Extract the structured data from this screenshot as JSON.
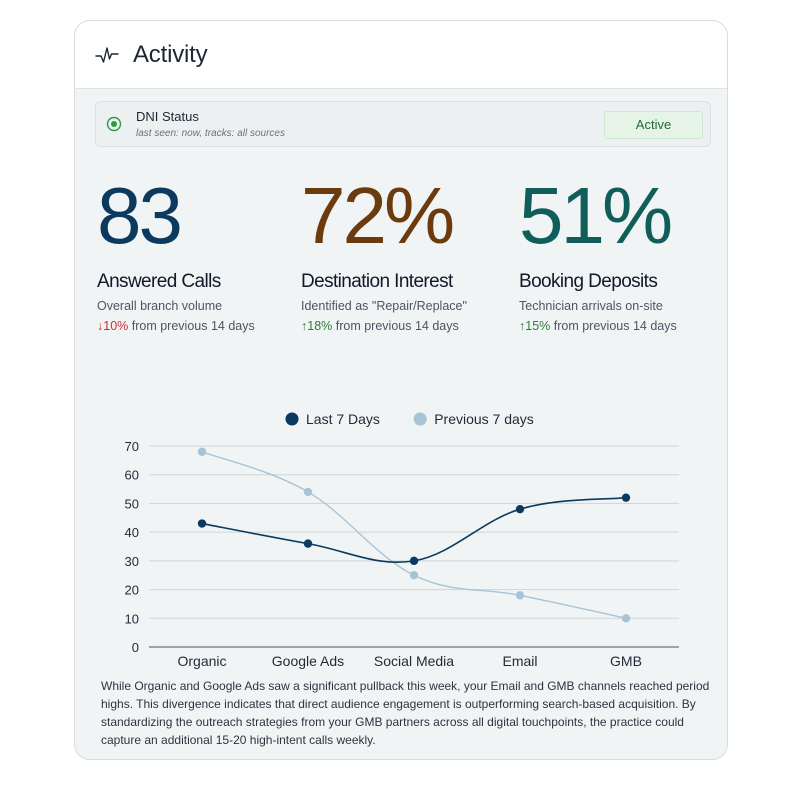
{
  "header": {
    "title": "Activity",
    "icon": "pulse-icon"
  },
  "dni": {
    "name": "DNI Status",
    "subtitle": "last seen: now, tracks: all sources",
    "status": "Active",
    "colors": {
      "indicator": "#2e9a3c",
      "badge_bg": "#e6f4e8",
      "badge_text": "#1f6b2e"
    }
  },
  "metrics": [
    {
      "value": "83",
      "label": "Answered Calls",
      "description": "Overall branch volume",
      "delta": {
        "direction": "down",
        "arrow": "↓",
        "value": "10%",
        "text": " from previous 14 days"
      },
      "color": "#0b3a5e"
    },
    {
      "value": "72%",
      "label": "Destination Interest",
      "description": "Identified as \"Repair/Replace\"",
      "delta": {
        "direction": "up",
        "arrow": "↑",
        "value": "18%",
        "text": " from previous 14 days"
      },
      "color": "#6b3a0d"
    },
    {
      "value": "51%",
      "label": "Booking Deposits",
      "description": "Technician arrivals on-site",
      "delta": {
        "direction": "up",
        "arrow": "↑",
        "value": "15%",
        "text": " from previous 14 days"
      },
      "color": "#0f5e5a"
    }
  ],
  "chart_data": {
    "type": "line",
    "categories": [
      "Organic",
      "Google Ads",
      "Social Media",
      "Email",
      "GMB"
    ],
    "series": [
      {
        "name": "Last 7 Days",
        "values": [
          43,
          36,
          30,
          48,
          52
        ],
        "color": "#0b3a5e"
      },
      {
        "name": "Previous 7 days",
        "values": [
          68,
          54,
          25,
          18,
          10
        ],
        "color": "#a7c4d6"
      }
    ],
    "ylim": [
      0,
      70
    ],
    "yticks": [
      0,
      10,
      20,
      30,
      40,
      50,
      60,
      70
    ],
    "grid": true,
    "legend": "top-center",
    "title": "",
    "xlabel": "",
    "ylabel": ""
  },
  "summary": "While Organic and Google Ads saw a significant pullback this week, your Email and GMB channels reached period highs. This divergence indicates that direct audience engagement is outperforming search-based acquisition. By standardizing the outreach strategies from your GMB partners across all digital touchpoints, the practice could capture an additional 15-20 high-intent calls weekly."
}
